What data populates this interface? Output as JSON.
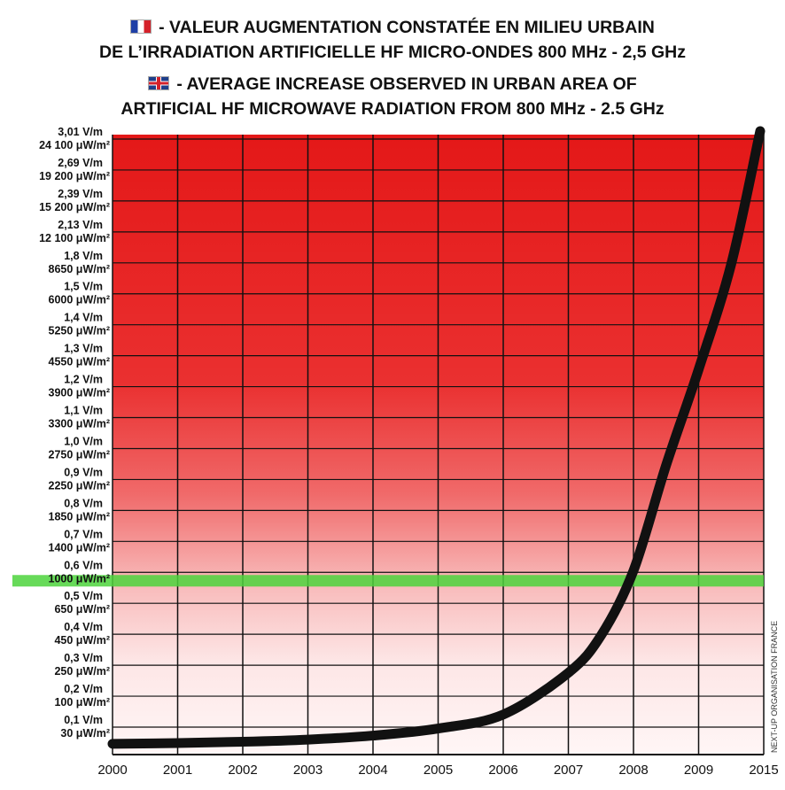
{
  "title": {
    "fr_line1": "- VALEUR AUGMENTATION CONSTATÉE EN MILIEU URBAIN",
    "fr_line2": "DE L’IRRADIATION ARTIFICIELLE HF MICRO-ONDES 800 MHz - 2,5 GHz",
    "en_line1": "- AVERAGE INCREASE OBSERVED IN URBAN AREA OF",
    "en_line2": "ARTIFICIAL HF MICROWAVE RADIATION FROM 800 MHz - 2.5 GHz",
    "fr_flag": "flag-france-icon",
    "en_flag": "flag-uk-icon"
  },
  "credit": "NEXT-UP ORGANISATION FRANCE",
  "colors": {
    "danger_red": "#e41e1e",
    "threshold_green": "#4cd43c",
    "curve": "#111111",
    "grid": "#111111"
  },
  "chart_data": {
    "type": "line",
    "x_tick_labels": [
      "2000",
      "2001",
      "2002",
      "2003",
      "2004",
      "2005",
      "2006",
      "2007",
      "2008",
      "2009",
      "2015"
    ],
    "y_tick_labels": [
      {
        "vm": "0,1 V/m",
        "uw": "30 μW/m²"
      },
      {
        "vm": "0,2 V/m",
        "uw": "100 μW/m²"
      },
      {
        "vm": "0,3 V/m",
        "uw": "250 μW/m²"
      },
      {
        "vm": "0,4 V/m",
        "uw": "450 μW/m²"
      },
      {
        "vm": "0,5 V/m",
        "uw": "650 μW/m²"
      },
      {
        "vm": "0,6 V/m",
        "uw": "1000 μW/m²"
      },
      {
        "vm": "0,7 V/m",
        "uw": "1400 μW/m²"
      },
      {
        "vm": "0,8 V/m",
        "uw": "1850 μW/m²"
      },
      {
        "vm": "0,9 V/m",
        "uw": "2250 μW/m²"
      },
      {
        "vm": "1,0 V/m",
        "uw": "2750 μW/m²"
      },
      {
        "vm": "1,1 V/m",
        "uw": "3300 μW/m²"
      },
      {
        "vm": "1,2 V/m",
        "uw": "3900 μW/m²"
      },
      {
        "vm": "1,3 V/m",
        "uw": "4550 μW/m²"
      },
      {
        "vm": "1,4 V/m",
        "uw": "5250 μW/m²"
      },
      {
        "vm": "1,5 V/m",
        "uw": "6000 μW/m²"
      },
      {
        "vm": "1,8 V/m",
        "uw": "8650 μW/m²"
      },
      {
        "vm": "2,13 V/m",
        "uw": "12 100 μW/m²"
      },
      {
        "vm": "2,39 V/m",
        "uw": "15 200 μW/m²"
      },
      {
        "vm": "2,69 V/m",
        "uw": "19 200 μW/m²"
      },
      {
        "vm": "3,01 V/m",
        "uw": "24 100 μW/m²"
      }
    ],
    "highlight_level": "1000 μW/m²",
    "series": [
      {
        "points": [
          {
            "x": "2000",
            "y": 0.005
          },
          {
            "x": "2001",
            "y": 0.03
          },
          {
            "x": "2002",
            "y": 0.07
          },
          {
            "x": "2003",
            "y": 0.14
          },
          {
            "x": "2004",
            "y": 0.27
          },
          {
            "x": "2005",
            "y": 0.5
          },
          {
            "x": "2006",
            "y": 0.95
          },
          {
            "x": "2007",
            "y": 2.3
          },
          {
            "x": "2007.5",
            "y": 3.5
          },
          {
            "x": "2008",
            "y": 5.6
          },
          {
            "x": "2008.5",
            "y": 9.0
          },
          {
            "x": "2009",
            "y": 12.1
          },
          {
            "x": "2009.5",
            "y": 15.5
          },
          {
            "x": "2015",
            "y": 19.8
          }
        ]
      }
    ],
    "grid": true
  }
}
